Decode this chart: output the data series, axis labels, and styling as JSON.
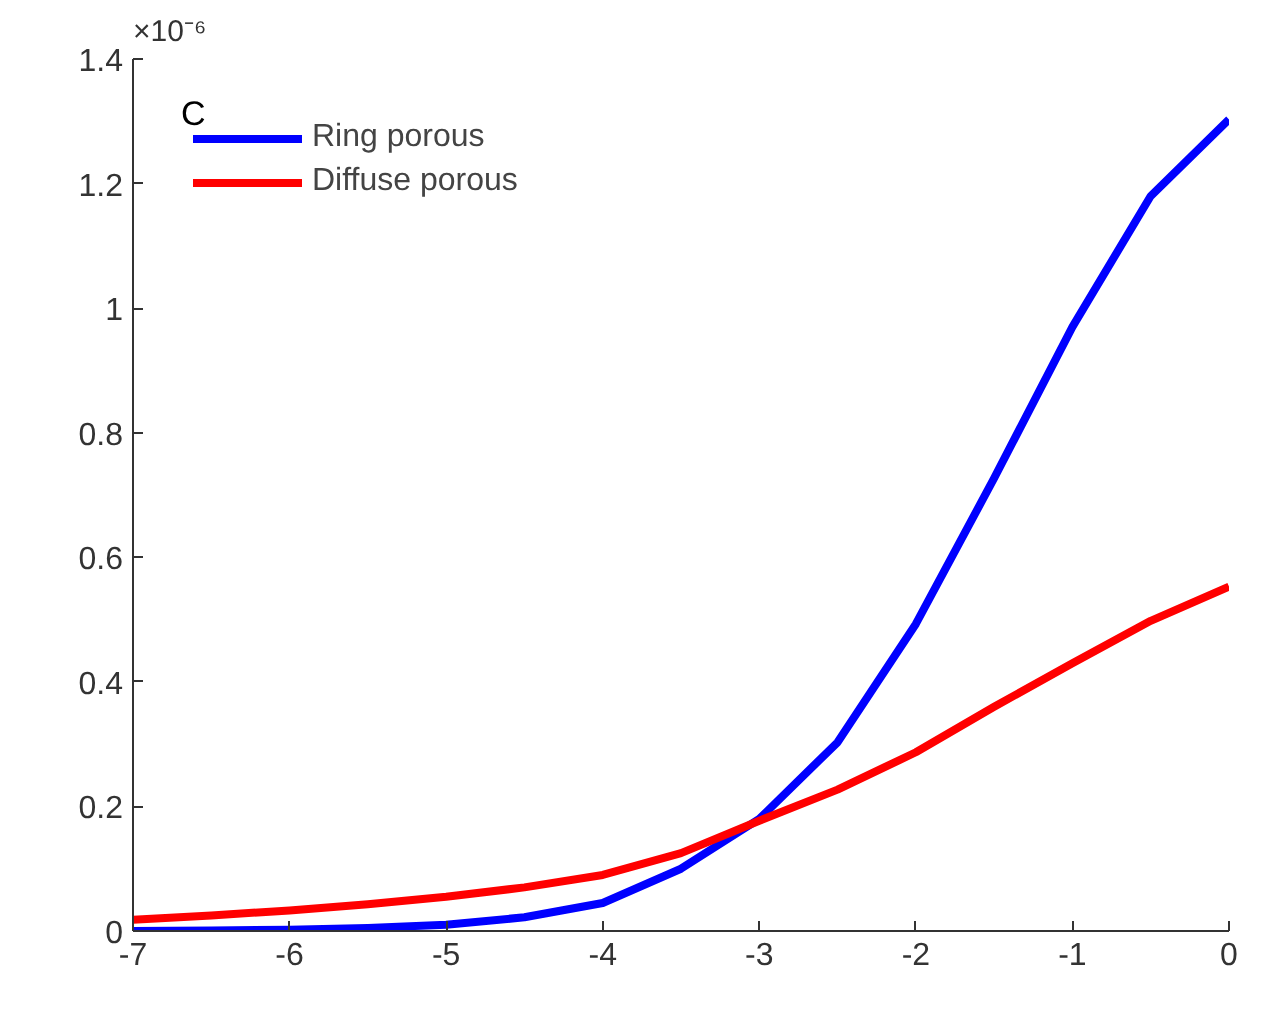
{
  "chart_data": {
    "type": "line",
    "x": [
      -7,
      -6.5,
      -6,
      -5.5,
      -5,
      -4.5,
      -4,
      -3.5,
      -3,
      -2.5,
      -2,
      -1.5,
      -1,
      -0.5,
      0
    ],
    "series": [
      {
        "name": "Ring porous",
        "color": "#0000ff",
        "values": [
          0,
          0.001,
          0.002,
          0.005,
          0.01,
          0.022,
          0.045,
          0.1,
          0.18,
          0.303,
          0.493,
          0.727,
          0.97,
          1.18,
          1.303
        ]
      },
      {
        "name": "Diffuse porous",
        "color": "#ff0000",
        "values": [
          0.018,
          0.025,
          0.033,
          0.043,
          0.055,
          0.07,
          0.09,
          0.125,
          0.177,
          0.227,
          0.287,
          0.36,
          0.43,
          0.498,
          0.553
        ]
      }
    ],
    "xlim": [
      -7,
      0
    ],
    "xticks": [
      -7,
      -6,
      -5,
      -4,
      -3,
      -2,
      -1,
      0
    ],
    "ylim": [
      0,
      1.4
    ],
    "yticks": [
      0,
      0.2,
      0.4,
      0.6,
      0.8,
      1,
      1.2,
      1.4
    ],
    "annotations": [
      "×10⁻⁶",
      "C"
    ],
    "legend": "top left",
    "grid": false,
    "marker": "none",
    "line_style": "solid"
  }
}
